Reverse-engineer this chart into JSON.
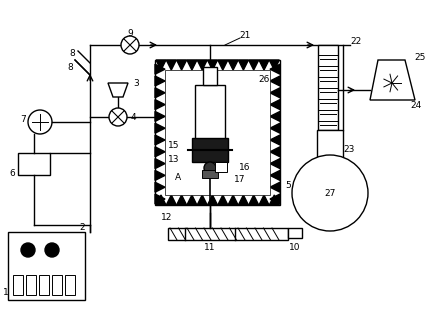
{
  "bg_color": "#ffffff",
  "line_color": "#000000",
  "fig_width": 4.36,
  "fig_height": 3.15,
  "dpi": 100
}
